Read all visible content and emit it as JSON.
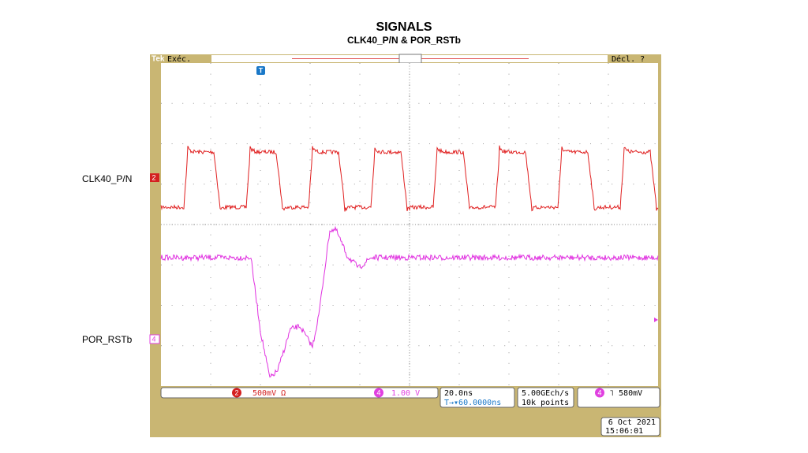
{
  "header": {
    "title": "SIGNALS",
    "subtitle": "CLK40_P/N & POR_RSTb"
  },
  "labels": {
    "clk": "CLK40_P/N",
    "por": "POR_RSTb"
  },
  "scope": {
    "brand": "Tek",
    "state": "Exéc.",
    "trigger_state": "Décl. ?",
    "trigger_marker": "T",
    "ch2_marker": "2",
    "ch4_marker": "4",
    "ch2": {
      "badge": "2",
      "scale": "500mV Ω"
    },
    "ch4": {
      "badge": "4",
      "scale": "1.00 V"
    },
    "timebase": {
      "scale": "20.0ns",
      "delay": "T→▾60.0000ns"
    },
    "acquisition": {
      "rate": "5.00GEch/s",
      "length": "10k points"
    },
    "trigger": {
      "badge": "4",
      "level": "˥  580mV"
    },
    "datetime": {
      "date": "6 Oct  2021",
      "time": "15:06:01"
    }
  }
}
